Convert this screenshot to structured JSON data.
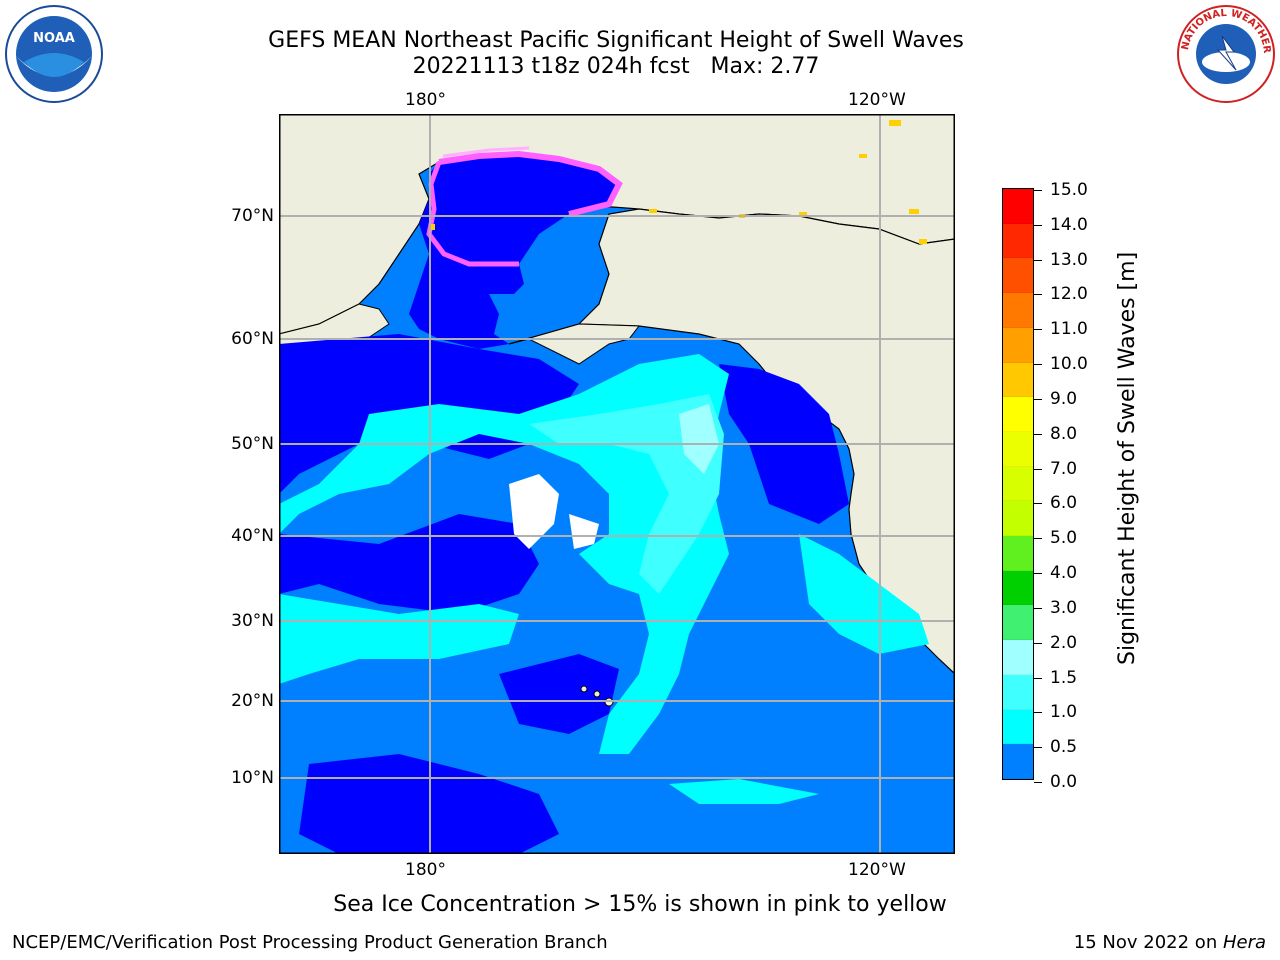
{
  "title": {
    "line1": "GEFS MEAN Northeast Pacific Significant Height of Swell Waves",
    "line2": "20221113 t18z 024h fcst   Max: 2.77"
  },
  "logos": {
    "left": "noa-logo",
    "left_text": "NOAA",
    "right": "nws-logo",
    "right_text": "NATIONAL WEATHER SERVICE"
  },
  "map": {
    "lon_labels_top": [
      "180°",
      "120°W"
    ],
    "lon_labels_bottom": [
      "180°",
      "120°W"
    ],
    "lat_labels": [
      "70°N",
      "60°N",
      "50°N",
      "40°N",
      "30°N",
      "20°N",
      "10°N"
    ],
    "colors": {
      "land": "#eeeede",
      "ocean_0_05": "#0000ff",
      "ocean_05_10": "#0080ff",
      "ocean_10_15": "#00ffff",
      "ocean_15_20": "#40ffff",
      "ocean_20_30": "#a0ffff",
      "ice_pink": "#ff60ff",
      "ice_yellow": "#ffd000",
      "grid": "#b0b0b0"
    }
  },
  "colorbar": {
    "title": "Significant Height of Swell Waves [m]",
    "ticks": [
      "15.0",
      "14.0",
      "13.0",
      "12.0",
      "11.0",
      "10.0",
      "9.0",
      "8.0",
      "7.0",
      "6.0",
      "5.0",
      "4.0",
      "3.0",
      "2.0",
      "1.5",
      "1.0",
      "0.5",
      "0.0"
    ],
    "colors": [
      "#ff0000",
      "#ff2800",
      "#ff5000",
      "#ff7800",
      "#ffa000",
      "#ffc800",
      "#ffff00",
      "#ecff00",
      "#d8ff00",
      "#c4ff00",
      "#60f020",
      "#00d000",
      "#40f070",
      "#a0ffff",
      "#40ffff",
      "#00ffff",
      "#0080ff",
      "#0000ff"
    ]
  },
  "annotation": "Sea Ice Concentration > 15% is shown in pink to yellow",
  "footer": {
    "left": "NCEP/EMC/Verification Post Processing Product Generation Branch",
    "right_prefix": "15 Nov 2022 on ",
    "right_italic": "Hera"
  }
}
